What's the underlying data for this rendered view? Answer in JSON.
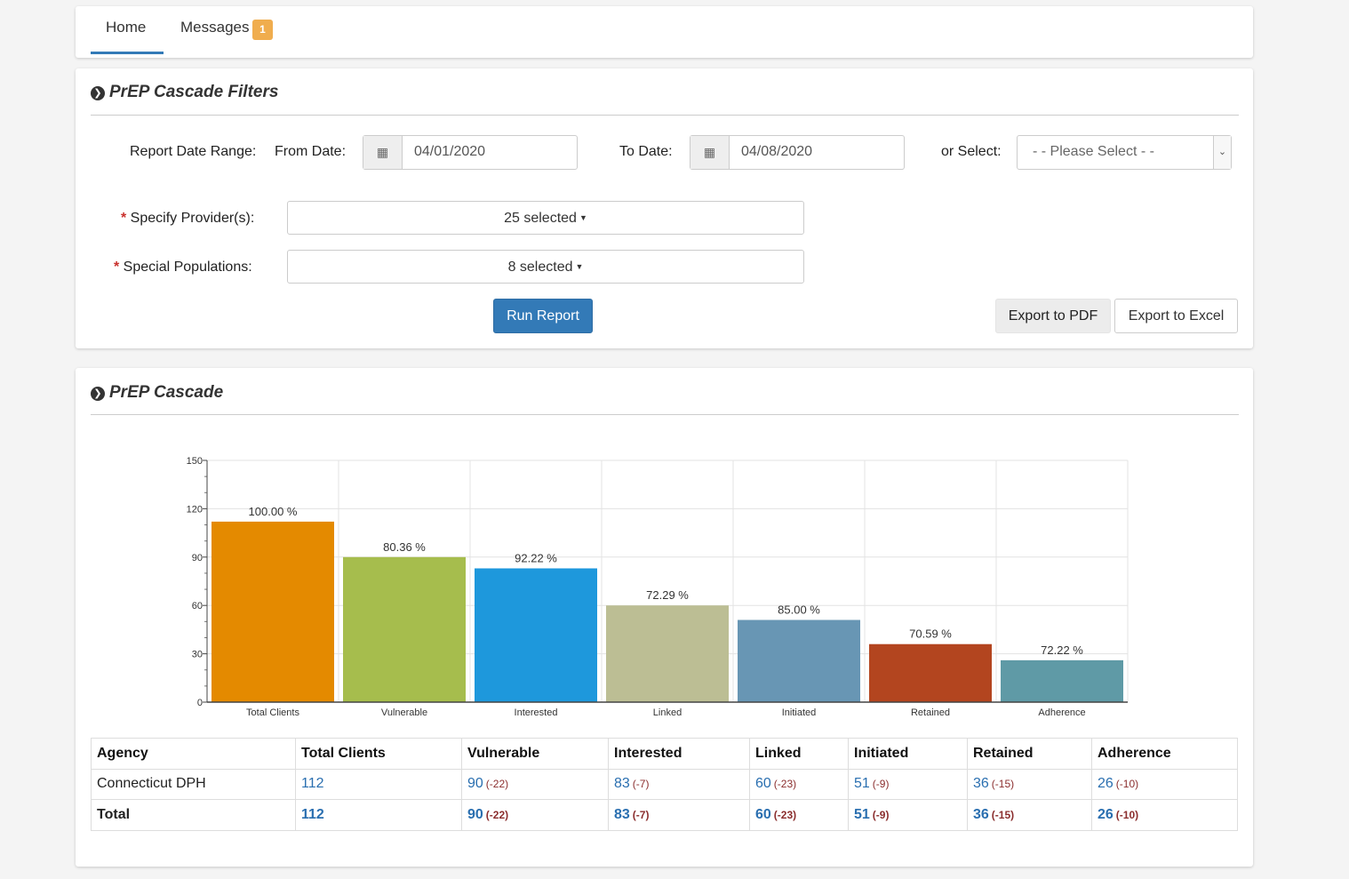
{
  "nav": {
    "tabs": [
      {
        "label": "Home"
      },
      {
        "label": "Messages",
        "badge": "1"
      }
    ]
  },
  "filters": {
    "title": "PrEP Cascade Filters",
    "date_range_label": "Report Date Range:",
    "from_label": "From Date:",
    "from_value": "04/01/2020",
    "to_label": "To Date:",
    "to_value": "04/08/2020",
    "or_select_label": "or Select:",
    "select_value": "- - Please Select - -",
    "providers_label": "Specify Provider(s):",
    "providers_value": "25 selected",
    "populations_label": "Special Populations:",
    "populations_value": "8 selected",
    "run_label": "Run Report",
    "pdf_label": "Export to PDF",
    "excel_label": "Export to Excel"
  },
  "cascade": {
    "title": "PrEP Cascade"
  },
  "chart_data": {
    "type": "bar",
    "categories": [
      "Total Clients",
      "Vulnerable",
      "Interested",
      "Linked",
      "Initiated",
      "Retained",
      "Adherence"
    ],
    "values": [
      112,
      90,
      83,
      60,
      51,
      36,
      26
    ],
    "labels": [
      "100.00   %",
      "80.36   %",
      "92.22   %",
      "72.29   %",
      "85.00   %",
      "70.59   %",
      "72.22   %"
    ],
    "colors": [
      "#e48a00",
      "#a6bd4d",
      "#1e98dc",
      "#bcbe94",
      "#6896b4",
      "#b3451f",
      "#5f9aa6"
    ],
    "ylim": [
      0,
      150
    ],
    "yticks": [
      0,
      30,
      60,
      90,
      120,
      150
    ],
    "grid": true
  },
  "table": {
    "headers": [
      "Agency",
      "Total Clients",
      "Vulnerable",
      "Interested",
      "Linked",
      "Initiated",
      "Retained",
      "Adherence"
    ],
    "rows": [
      {
        "agency": "Connecticut DPH",
        "values": [
          "112",
          "90",
          "83",
          "60",
          "51",
          "36",
          "26"
        ],
        "deltas": [
          "",
          "(-22)",
          "(-7)",
          "(-23)",
          "(-9)",
          "(-15)",
          "(-10)"
        ]
      },
      {
        "agency": "Total",
        "values": [
          "112",
          "90",
          "83",
          "60",
          "51",
          "36",
          "26"
        ],
        "deltas": [
          "",
          "(-22)",
          "(-7)",
          "(-23)",
          "(-9)",
          "(-15)",
          "(-10)"
        ]
      }
    ]
  }
}
